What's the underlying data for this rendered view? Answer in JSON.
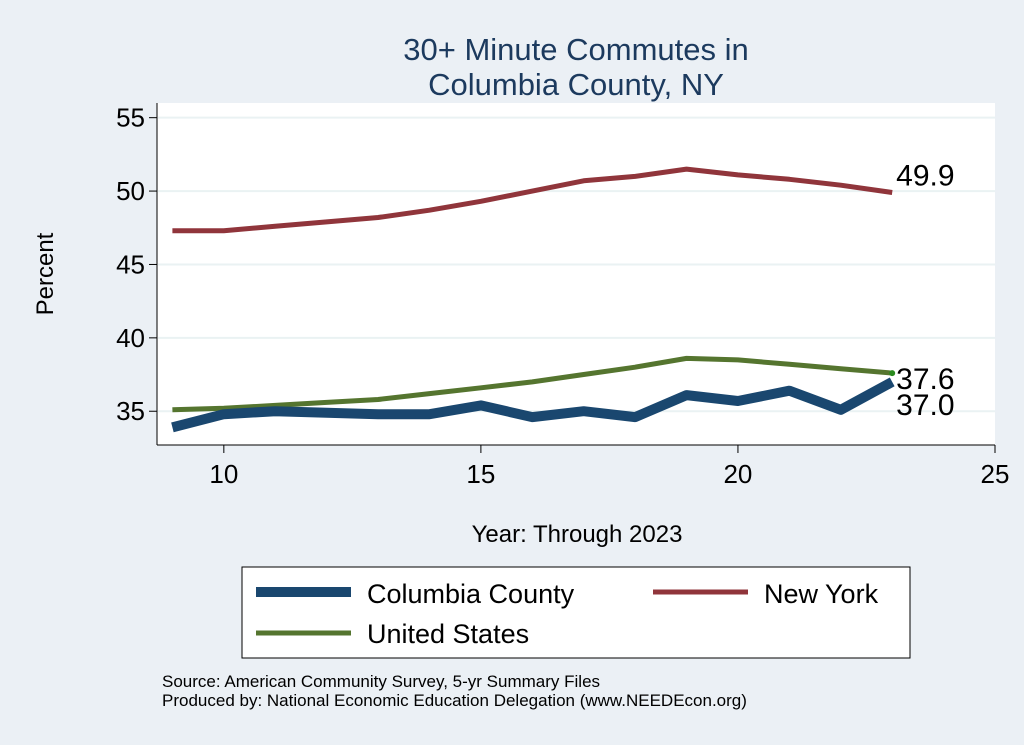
{
  "chart_data": {
    "type": "line",
    "title": [
      "30+ Minute Commutes in",
      "Columbia County, NY"
    ],
    "xlabel": "Year: Through 2023",
    "ylabel": "Percent",
    "xlim": [
      8.7,
      25
    ],
    "ylim": [
      32.7,
      56
    ],
    "xticks": [
      10,
      15,
      20,
      25
    ],
    "yticks": [
      35,
      40,
      45,
      50,
      55
    ],
    "grid": true,
    "x": [
      9,
      10,
      11,
      12,
      13,
      14,
      15,
      16,
      17,
      18,
      19,
      20,
      21,
      22,
      23
    ],
    "series": [
      {
        "name": "Columbia County",
        "color": "#1a476f",
        "values": [
          33.9,
          34.8,
          35.0,
          34.9,
          34.8,
          34.8,
          35.4,
          34.6,
          35.0,
          34.6,
          36.1,
          35.7,
          36.4,
          35.1,
          37.0
        ],
        "end_label": "37.0"
      },
      {
        "name": "New York",
        "color": "#90353b",
        "values": [
          47.3,
          47.3,
          47.6,
          47.9,
          48.2,
          48.7,
          49.3,
          50.0,
          50.7,
          51.0,
          51.5,
          51.1,
          50.8,
          50.4,
          49.9
        ],
        "end_label": "49.9"
      },
      {
        "name": "United States",
        "color": "#55752f",
        "values": [
          35.1,
          35.2,
          35.4,
          35.6,
          35.8,
          36.2,
          36.6,
          37.0,
          37.5,
          38.0,
          38.6,
          38.5,
          38.2,
          37.9,
          37.6
        ],
        "end_label": "37.6"
      }
    ],
    "legend": {
      "position": "bottom",
      "entries": [
        "Columbia County",
        "New York",
        "United States"
      ]
    }
  },
  "footer": {
    "source": "Source: American Community Survey, 5-yr Summary Files",
    "produced": "Produced by: National Economic Education Delegation (www.NEEDEcon.org)"
  }
}
